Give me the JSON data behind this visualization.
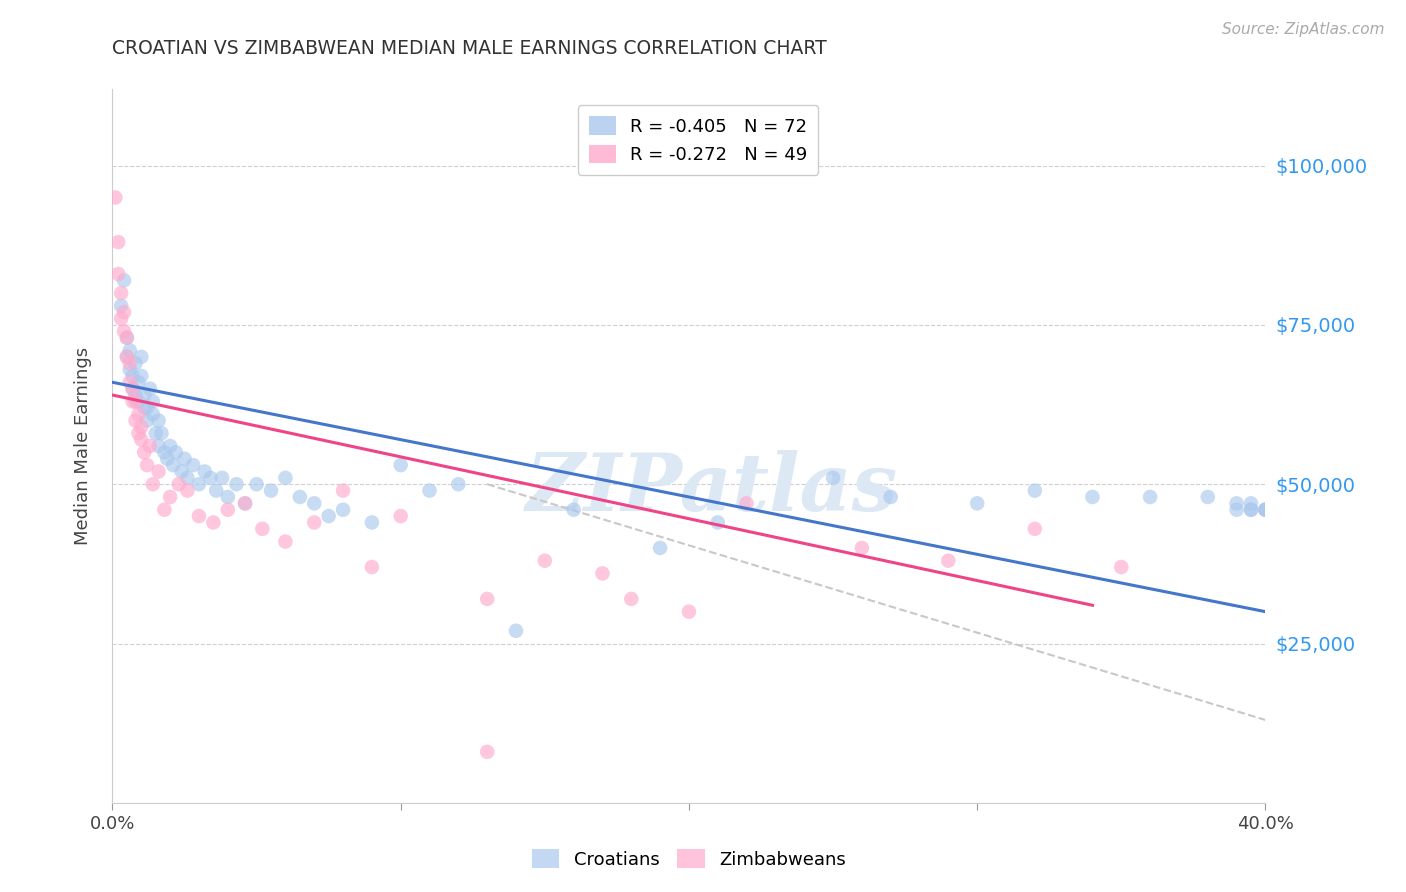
{
  "title": "CROATIAN VS ZIMBABWEAN MEDIAN MALE EARNINGS CORRELATION CHART",
  "source": "Source: ZipAtlas.com",
  "ylabel": "Median Male Earnings",
  "xlim": [
    0.0,
    0.4
  ],
  "ylim": [
    0,
    112000
  ],
  "yticks": [
    25000,
    50000,
    75000,
    100000
  ],
  "ytick_labels": [
    "$25,000",
    "$50,000",
    "$75,000",
    "$100,000"
  ],
  "xticks": [
    0.0,
    0.1,
    0.2,
    0.3,
    0.4
  ],
  "xtick_labels": [
    "0.0%",
    "",
    "",
    "",
    "40.0%"
  ],
  "background_color": "#ffffff",
  "grid_color": "#d0d0d0",
  "watermark": "ZIPatlas",
  "legend_r1": "R = -0.405   N = 72",
  "legend_r2": "R = -0.272   N = 49",
  "croatians_color": "#aac8ee",
  "zimbabweans_color": "#ffaacc",
  "trendline_croatians_color": "#4477cc",
  "trendline_zimbabweans_color": "#ee4488",
  "trendline_dashed_color": "#c8c8c8",
  "croatians_x": [
    0.003,
    0.004,
    0.005,
    0.005,
    0.006,
    0.006,
    0.007,
    0.007,
    0.008,
    0.008,
    0.009,
    0.009,
    0.01,
    0.01,
    0.011,
    0.011,
    0.012,
    0.012,
    0.013,
    0.014,
    0.014,
    0.015,
    0.016,
    0.016,
    0.017,
    0.018,
    0.019,
    0.02,
    0.021,
    0.022,
    0.024,
    0.025,
    0.026,
    0.028,
    0.03,
    0.032,
    0.034,
    0.036,
    0.038,
    0.04,
    0.043,
    0.046,
    0.05,
    0.055,
    0.06,
    0.065,
    0.07,
    0.075,
    0.08,
    0.09,
    0.1,
    0.11,
    0.12,
    0.14,
    0.16,
    0.19,
    0.21,
    0.25,
    0.27,
    0.3,
    0.32,
    0.34,
    0.36,
    0.38,
    0.39,
    0.395,
    0.4,
    0.4,
    0.4,
    0.395,
    0.395,
    0.39
  ],
  "croatians_y": [
    78000,
    82000,
    70000,
    73000,
    68000,
    71000,
    67000,
    65000,
    69000,
    64000,
    63000,
    66000,
    70000,
    67000,
    62000,
    64000,
    60000,
    62000,
    65000,
    61000,
    63000,
    58000,
    60000,
    56000,
    58000,
    55000,
    54000,
    56000,
    53000,
    55000,
    52000,
    54000,
    51000,
    53000,
    50000,
    52000,
    51000,
    49000,
    51000,
    48000,
    50000,
    47000,
    50000,
    49000,
    51000,
    48000,
    47000,
    45000,
    46000,
    44000,
    53000,
    49000,
    50000,
    27000,
    46000,
    40000,
    44000,
    51000,
    48000,
    47000,
    49000,
    48000,
    48000,
    48000,
    47000,
    47000,
    46000,
    46000,
    46000,
    46000,
    46000,
    46000
  ],
  "zimbabweans_x": [
    0.001,
    0.002,
    0.002,
    0.003,
    0.003,
    0.004,
    0.004,
    0.005,
    0.005,
    0.006,
    0.006,
    0.007,
    0.007,
    0.008,
    0.008,
    0.009,
    0.009,
    0.01,
    0.01,
    0.011,
    0.012,
    0.013,
    0.014,
    0.016,
    0.018,
    0.02,
    0.023,
    0.026,
    0.03,
    0.035,
    0.04,
    0.046,
    0.052,
    0.06,
    0.07,
    0.08,
    0.09,
    0.1,
    0.13,
    0.15,
    0.18,
    0.22,
    0.26,
    0.29,
    0.32,
    0.35,
    0.13,
    0.17,
    0.2
  ],
  "zimbabweans_y": [
    95000,
    88000,
    83000,
    80000,
    76000,
    74000,
    77000,
    70000,
    73000,
    66000,
    69000,
    63000,
    65000,
    60000,
    63000,
    58000,
    61000,
    57000,
    59000,
    55000,
    53000,
    56000,
    50000,
    52000,
    46000,
    48000,
    50000,
    49000,
    45000,
    44000,
    46000,
    47000,
    43000,
    41000,
    44000,
    49000,
    37000,
    45000,
    32000,
    38000,
    32000,
    47000,
    40000,
    38000,
    43000,
    37000,
    8000,
    36000,
    30000
  ],
  "trendline_croatians_x0": 0.0,
  "trendline_croatians_y0": 66000,
  "trendline_croatians_x1": 0.4,
  "trendline_croatians_y1": 30000,
  "trendline_zimbabweans_x0": 0.0,
  "trendline_zimbabweans_y0": 64000,
  "trendline_zimbabweans_x1": 0.34,
  "trendline_zimbabweans_y1": 31000,
  "trendline_dashed_x0": 0.13,
  "trendline_dashed_y0": 50000,
  "trendline_dashed_x1": 0.4,
  "trendline_dashed_y1": 13000
}
